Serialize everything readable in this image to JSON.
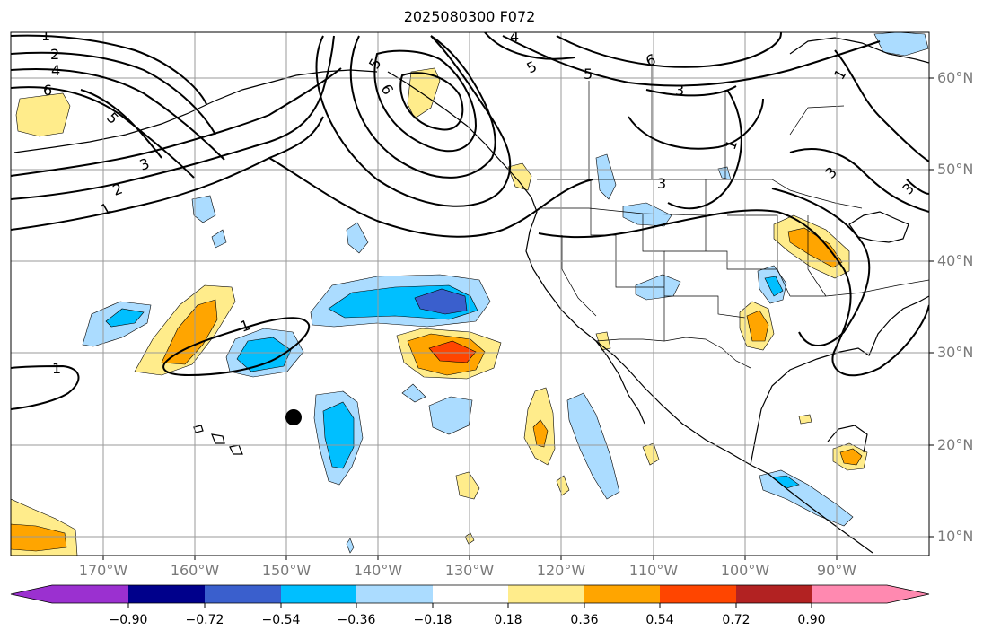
{
  "title": "2025080300 F072",
  "map": {
    "lat_labels": [
      "60°N",
      "50°N",
      "40°N",
      "30°N",
      "20°N",
      "10°N"
    ],
    "lon_labels": [
      "170°W",
      "160°W",
      "150°W",
      "140°W",
      "130°W",
      "120°W",
      "110°W",
      "100°W",
      "90°W"
    ],
    "contour_labels": [
      "1",
      "2",
      "4",
      "6",
      "5",
      "3",
      "2",
      "1",
      "1",
      "1",
      "6",
      "5",
      "4",
      "5",
      "6",
      "3",
      "3",
      "1",
      "5",
      "3",
      "3",
      "1"
    ]
  },
  "colorbar": {
    "ticks": [
      "−0.90",
      "−0.72",
      "−0.54",
      "−0.36",
      "−0.18",
      "0.18",
      "0.36",
      "0.54",
      "0.72",
      "0.90"
    ],
    "colors": [
      "#9b30d0",
      "#00008b",
      "#3a5fcd",
      "#00bfff",
      "#abdcff",
      "#ffffff",
      "#ffec8b",
      "#ffa500",
      "#ff4500",
      "#b22222",
      "#ff89b0"
    ]
  },
  "colors": {
    "light_blue": "#abdcff",
    "deep_sky_blue": "#00bfff",
    "royal_blue": "#3a5fcd",
    "light_yellow": "#ffec8b",
    "orange": "#ffa500",
    "orange_red": "#ff4500"
  }
}
